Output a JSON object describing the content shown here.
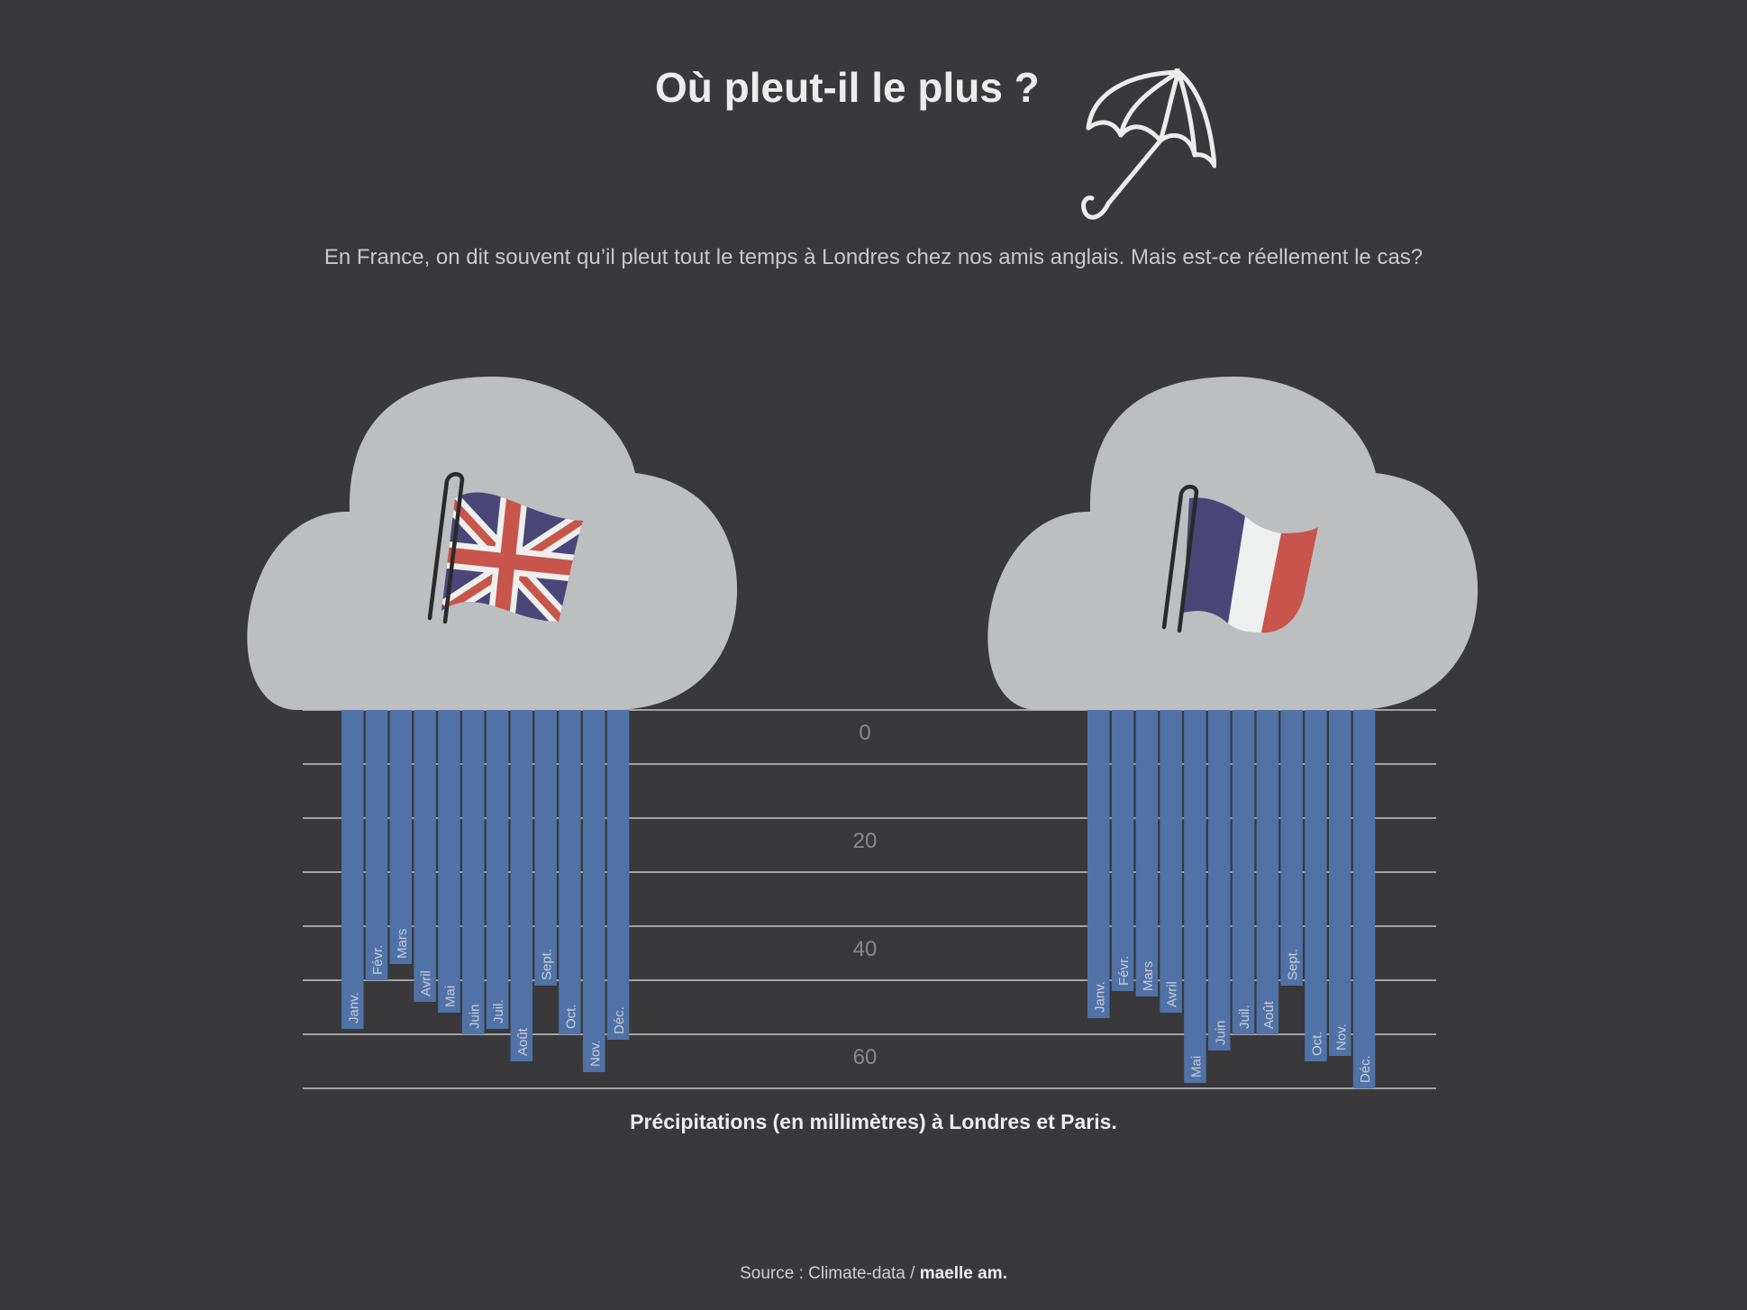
{
  "title": "Où pleut-il le plus ?",
  "subtitle": "En France, on dit souvent qu’il pleut tout le temps à Londres chez nos amis anglais. Mais est-ce réellement le cas?",
  "caption": "Précipitations (en millimètres) à Londres et Paris.",
  "source": {
    "prefix": "Source : Climate-data / ",
    "author": "maelle am."
  },
  "icons": [
    "umbrella-icon",
    "uk-flag-icon",
    "france-flag-icon",
    "cloud-icon"
  ],
  "colors": {
    "background": "#39393b",
    "bar": "#5072a7",
    "cloud": "#bdbec0",
    "grid": "#a3a3a3",
    "tick_label": "#8a8a8a",
    "flag_red": "#c7554b",
    "flag_blue": "#4a4678",
    "flag_white": "#eef0ef"
  },
  "chart_data": {
    "type": "bar",
    "orientation": "downward",
    "y_ticks": [
      0,
      20,
      40,
      60
    ],
    "ylim": [
      0,
      70
    ],
    "grid": true,
    "categories": [
      "Janv.",
      "Févr.",
      "Mars",
      "Avril",
      "Mai",
      "Juin",
      "Juil.",
      "Août",
      "Sept.",
      "Oct.",
      "Nov.",
      "Déc."
    ],
    "series": [
      {
        "name": "Londres",
        "values": [
          59,
          50,
          47,
          54,
          56,
          60,
          59,
          65,
          51,
          60,
          67,
          61
        ]
      },
      {
        "name": "Paris",
        "values": [
          57,
          52,
          53,
          56,
          69,
          63,
          60,
          60,
          51,
          65,
          64,
          70
        ]
      }
    ]
  }
}
